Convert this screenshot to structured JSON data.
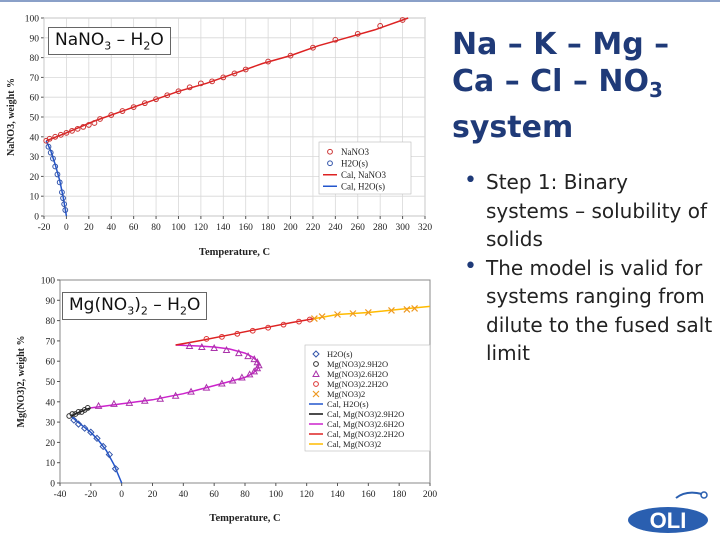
{
  "slide": {
    "title_parts": [
      "Na – K – Mg – Ca – Cl – NO",
      "3",
      " system"
    ],
    "bullets": [
      "Step 1: Binary systems – solubility of solids",
      "The model is valid for systems ranging from dilute to the fused salt limit"
    ],
    "logo_text": "OLI"
  },
  "colors": {
    "title": "#1f3a78",
    "accent_blue": "#2d5fb3",
    "logo_blue": "#2a5fb0"
  },
  "chart_data": [
    {
      "type": "scatter",
      "label_parts": [
        "NaNO",
        "3",
        " – H",
        "2",
        "O"
      ],
      "xlabel": "Temperature, C",
      "ylabel": "NaNO3, weight %",
      "xlim": [
        -20,
        320
      ],
      "ylim": [
        0,
        100
      ],
      "xticks": [
        -20,
        0,
        20,
        40,
        60,
        80,
        100,
        120,
        140,
        160,
        180,
        200,
        220,
        240,
        260,
        280,
        300,
        320
      ],
      "yticks": [
        0,
        10,
        20,
        30,
        40,
        50,
        60,
        70,
        80,
        90,
        100
      ],
      "grid": true,
      "legend_position": "right",
      "legend": [
        {
          "text": "NaNO3",
          "kind": "marker",
          "marker": "circle",
          "color": "#cc3333"
        },
        {
          "text": "H2O(s)",
          "kind": "marker",
          "marker": "circle",
          "color": "#3355aa"
        },
        {
          "text": "Cal, NaNO3",
          "kind": "line",
          "color": "#dd2222"
        },
        {
          "text": "Cal, H2O(s)",
          "kind": "line",
          "color": "#2255cc"
        }
      ],
      "series": [
        {
          "name": "Cal, NaNO3",
          "kind": "line",
          "color": "#dd2222",
          "x": [
            -18,
            0,
            25,
            50,
            75,
            100,
            125,
            150,
            175,
            200,
            225,
            250,
            275,
            300,
            305
          ],
          "y": [
            38,
            42,
            48,
            53,
            58,
            63,
            67,
            72,
            77,
            81,
            86,
            90,
            94,
            99,
            100
          ]
        },
        {
          "name": "Cal, H2O(s)",
          "kind": "line",
          "color": "#2255cc",
          "x": [
            0,
            -3,
            -6,
            -10,
            -14,
            -18
          ],
          "y": [
            0,
            10,
            18,
            26,
            33,
            38
          ]
        },
        {
          "name": "NaNO3",
          "kind": "marker",
          "marker": "circle",
          "color": "#cc3333",
          "x": [
            -18,
            -15,
            -10,
            -5,
            0,
            5,
            10,
            15,
            20,
            25,
            30,
            40,
            50,
            60,
            70,
            80,
            90,
            100,
            110,
            120,
            130,
            140,
            150,
            160,
            180,
            200,
            220,
            240,
            260,
            280,
            300
          ],
          "y": [
            38,
            39,
            40,
            41,
            42,
            43,
            44,
            45,
            46,
            47,
            49,
            51,
            53,
            55,
            57,
            59,
            61,
            63,
            65,
            67,
            68,
            70,
            72,
            74,
            78,
            81,
            85,
            89,
            92,
            96,
            99
          ]
        },
        {
          "name": "H2O(s)",
          "kind": "marker",
          "marker": "circle",
          "color": "#3355aa",
          "x": [
            -1,
            -2,
            -3,
            -4,
            -6,
            -8,
            -10,
            -12,
            -14,
            -16
          ],
          "y": [
            3,
            6,
            9,
            12,
            17,
            21,
            25,
            29,
            32,
            35
          ]
        }
      ]
    },
    {
      "type": "scatter",
      "label_parts": [
        "Mg(NO",
        "3",
        ")",
        "2",
        " – H",
        "2",
        "O"
      ],
      "xlabel": "Temperature, C",
      "ylabel": "Mg(NO3)2, weight %",
      "xlim": [
        -40,
        200
      ],
      "ylim": [
        0,
        100
      ],
      "xticks": [
        -40,
        -20,
        0,
        20,
        40,
        60,
        80,
        100,
        120,
        140,
        160,
        180,
        200
      ],
      "yticks": [
        0,
        10,
        20,
        30,
        40,
        50,
        60,
        70,
        80,
        90,
        100
      ],
      "grid": false,
      "legend_position": "right",
      "legend": [
        {
          "text": "H2O(s)",
          "kind": "marker",
          "marker": "diamond",
          "color": "#3355aa"
        },
        {
          "text": "Mg(NO3)2.9H2O",
          "kind": "marker",
          "marker": "circle",
          "color": "#333333"
        },
        {
          "text": "Mg(NO3)2.6H2O",
          "kind": "marker",
          "marker": "triangle",
          "color": "#aa33aa"
        },
        {
          "text": "Mg(NO3)2.2H2O",
          "kind": "marker",
          "marker": "circle",
          "color": "#dd3333"
        },
        {
          "text": "Mg(NO3)2",
          "kind": "marker",
          "marker": "x",
          "color": "#ee9922"
        },
        {
          "text": "Cal, H2O(s)",
          "kind": "line",
          "color": "#2255cc"
        },
        {
          "text": "Cal, Mg(NO3)2.9H2O",
          "kind": "line",
          "color": "#111111"
        },
        {
          "text": "Cal, Mg(NO3)2.6H2O",
          "kind": "line",
          "color": "#cc22cc"
        },
        {
          "text": "Cal, Mg(NO3)2.2H2O",
          "kind": "line",
          "color": "#dd2222"
        },
        {
          "text": "Cal, Mg(NO3)2",
          "kind": "line",
          "color": "#ffbb00"
        }
      ],
      "series": [
        {
          "name": "Cal, H2O(s)",
          "kind": "line",
          "color": "#2255cc",
          "x": [
            0,
            -5,
            -10,
            -15,
            -20,
            -25,
            -30,
            -33
          ],
          "y": [
            0,
            9,
            16,
            21,
            25,
            28,
            31,
            33
          ]
        },
        {
          "name": "Cal, Mg(NO3)2.9H2O",
          "kind": "line",
          "color": "#111111",
          "x": [
            -33,
            -30,
            -27,
            -24,
            -20
          ],
          "y": [
            33,
            34,
            35,
            36,
            37
          ]
        },
        {
          "name": "Cal, Mg(NO3)2.6H2O",
          "kind": "line",
          "color": "#cc22cc",
          "x": [
            -20,
            -10,
            0,
            10,
            20,
            30,
            40,
            50,
            60,
            70,
            80,
            85,
            88,
            89,
            88,
            85,
            80,
            70,
            60,
            50,
            40,
            35
          ],
          "y": [
            37,
            38,
            39,
            40,
            41,
            42.5,
            44,
            46,
            48,
            50,
            52,
            54,
            56,
            58,
            60,
            62,
            64,
            66,
            67,
            67.5,
            67.8,
            68
          ]
        },
        {
          "name": "Cal, Mg(NO3)2.2H2O",
          "kind": "line",
          "color": "#dd2222",
          "x": [
            35,
            50,
            70,
            90,
            110,
            125
          ],
          "y": [
            68,
            70,
            73,
            76,
            79,
            81
          ]
        },
        {
          "name": "Cal, Mg(NO3)2",
          "kind": "line",
          "color": "#ffbb00",
          "x": [
            125,
            140,
            160,
            180,
            200
          ],
          "y": [
            81,
            83,
            84,
            85.5,
            87
          ]
        },
        {
          "name": "H2O(s)",
          "kind": "marker",
          "marker": "diamond",
          "color": "#3355aa",
          "x": [
            -4,
            -8,
            -12,
            -16,
            -20,
            -24,
            -28,
            -31
          ],
          "y": [
            7,
            14,
            18,
            22,
            25,
            27,
            29,
            31
          ]
        },
        {
          "name": "Mg(NO3)2.9H2O",
          "kind": "marker",
          "marker": "circle",
          "color": "#333333",
          "x": [
            -34,
            -32,
            -30,
            -28,
            -26,
            -24,
            -22
          ],
          "y": [
            33,
            34,
            34,
            35,
            35,
            36,
            37
          ]
        },
        {
          "name": "Mg(NO3)2.6H2O",
          "kind": "marker",
          "marker": "triangle",
          "color": "#aa33aa",
          "x": [
            -15,
            -5,
            5,
            15,
            25,
            35,
            45,
            55,
            65,
            72,
            78,
            83,
            86,
            88,
            89,
            88,
            86,
            82,
            76,
            68,
            60,
            52,
            44
          ],
          "y": [
            38,
            39,
            39.5,
            40.5,
            41.5,
            43,
            45,
            47,
            49,
            50.5,
            52,
            53.5,
            55,
            56.5,
            58,
            59.5,
            61,
            62.5,
            64,
            65.5,
            66.5,
            67,
            67.5
          ]
        },
        {
          "name": "Mg(NO3)2.2H2O",
          "kind": "marker",
          "marker": "circle",
          "color": "#dd3333",
          "x": [
            55,
            65,
            75,
            85,
            95,
            105,
            115,
            122
          ],
          "y": [
            71,
            72,
            73.5,
            75,
            76.5,
            78,
            79.5,
            80.5
          ]
        },
        {
          "name": "Mg(NO3)2",
          "kind": "marker",
          "marker": "x",
          "color": "#ee9922",
          "x": [
            125,
            130,
            140,
            150,
            160,
            175,
            185,
            190
          ],
          "y": [
            81,
            82,
            83,
            83.5,
            84,
            85,
            85.5,
            86
          ]
        }
      ]
    }
  ]
}
